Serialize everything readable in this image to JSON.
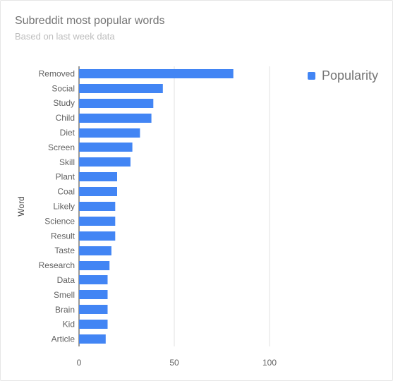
{
  "chart_data": {
    "type": "bar",
    "orientation": "horizontal",
    "title": "Subreddit most popular words",
    "subtitle": "Based on last week data",
    "xlabel": "",
    "ylabel": "Word",
    "xlim": [
      0,
      100
    ],
    "xticks": [
      "0",
      "50",
      "100"
    ],
    "grid": true,
    "legend_position": "top-right",
    "categories": [
      "Removed",
      "Social",
      "Study",
      "Child",
      "Diet",
      "Screen",
      "Skill",
      "Plant",
      "Coal",
      "Likely",
      "Science",
      "Result",
      "Taste",
      "Research",
      "Data",
      "Smell",
      "Brain",
      "Kid",
      "Article"
    ],
    "series": [
      {
        "name": "Popularity",
        "color": "#4285f4",
        "values": [
          81,
          44,
          39,
          38,
          32,
          28,
          27,
          20,
          20,
          19,
          19,
          19,
          17,
          16,
          15,
          15,
          15,
          15,
          14
        ]
      }
    ]
  }
}
